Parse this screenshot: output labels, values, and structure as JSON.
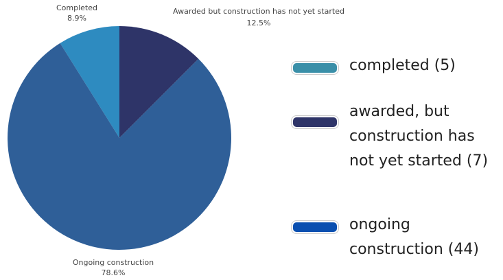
{
  "chart_data": {
    "type": "pie",
    "categories": [
      "Completed",
      "Awarded but construction has not yet started",
      "Ongoing construction"
    ],
    "values": [
      8.9,
      12.5,
      78.6
    ],
    "value_labels": [
      "8.9%",
      "12.5%",
      "78.6%"
    ],
    "colors": [
      "#2e8bc0",
      "#2e3468",
      "#2f5f98"
    ],
    "legend": [
      "completed (5)",
      "awarded, but construction has not yet started (7)",
      "ongoing construction (44)"
    ],
    "legend_colors": [
      "#3a8fa8",
      "#2e3468",
      "#0a4fb0"
    ]
  }
}
